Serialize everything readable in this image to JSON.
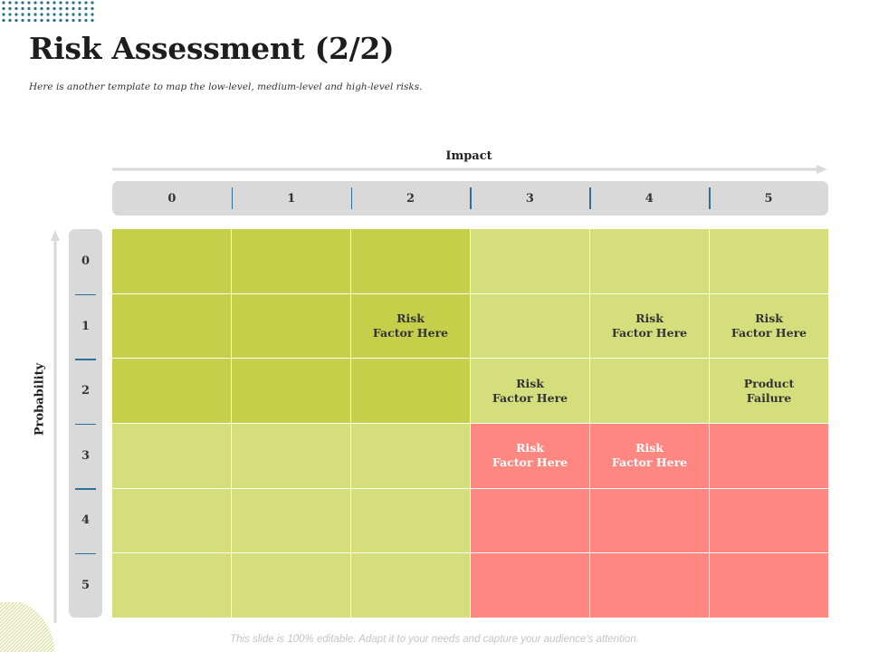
{
  "slide": {
    "title": "Risk Assessment (2/2)",
    "subtitle": "Here is another template  to map the low-level,  medium-level  and  high-level risks.",
    "footer": "This slide is 100% editable. Adapt it to your needs and capture your audience's attention."
  },
  "matrix": {
    "impact_label": "Impact",
    "probability_label": "Probability",
    "impact_levels": [
      "0",
      "1",
      "2",
      "3",
      "4",
      "5"
    ],
    "probability_levels": [
      "0",
      "1",
      "2",
      "3",
      "4",
      "5"
    ],
    "colors": {
      "dark_green": "#c5cf4a",
      "light_green": "#d5de7c",
      "red": "#ff8781",
      "scale_gray": "#d9d9d9",
      "divider_blue": "#2e6f9e"
    },
    "rows": [
      [
        {
          "level": "dark",
          "text": ""
        },
        {
          "level": "dark",
          "text": ""
        },
        {
          "level": "dark",
          "text": ""
        },
        {
          "level": "light",
          "text": ""
        },
        {
          "level": "light",
          "text": ""
        },
        {
          "level": "light",
          "text": ""
        }
      ],
      [
        {
          "level": "dark",
          "text": ""
        },
        {
          "level": "dark",
          "text": ""
        },
        {
          "level": "dark",
          "text": "Risk\nFactor Here"
        },
        {
          "level": "light",
          "text": ""
        },
        {
          "level": "light",
          "text": "Risk\nFactor Here"
        },
        {
          "level": "light",
          "text": "Risk\nFactor Here"
        }
      ],
      [
        {
          "level": "dark",
          "text": ""
        },
        {
          "level": "dark",
          "text": ""
        },
        {
          "level": "dark",
          "text": ""
        },
        {
          "level": "light",
          "text": "Risk\nFactor Here"
        },
        {
          "level": "light",
          "text": ""
        },
        {
          "level": "light",
          "text": "Product\nFailure"
        }
      ],
      [
        {
          "level": "light",
          "text": ""
        },
        {
          "level": "light",
          "text": ""
        },
        {
          "level": "light",
          "text": ""
        },
        {
          "level": "high",
          "text": "Risk\nFactor Here"
        },
        {
          "level": "high",
          "text": "Risk\nFactor Here"
        },
        {
          "level": "high",
          "text": ""
        }
      ],
      [
        {
          "level": "light",
          "text": ""
        },
        {
          "level": "light",
          "text": ""
        },
        {
          "level": "light",
          "text": ""
        },
        {
          "level": "high",
          "text": ""
        },
        {
          "level": "high",
          "text": ""
        },
        {
          "level": "high",
          "text": ""
        }
      ],
      [
        {
          "level": "light",
          "text": ""
        },
        {
          "level": "light",
          "text": ""
        },
        {
          "level": "light",
          "text": ""
        },
        {
          "level": "high",
          "text": ""
        },
        {
          "level": "high",
          "text": ""
        },
        {
          "level": "high",
          "text": ""
        }
      ]
    ]
  }
}
